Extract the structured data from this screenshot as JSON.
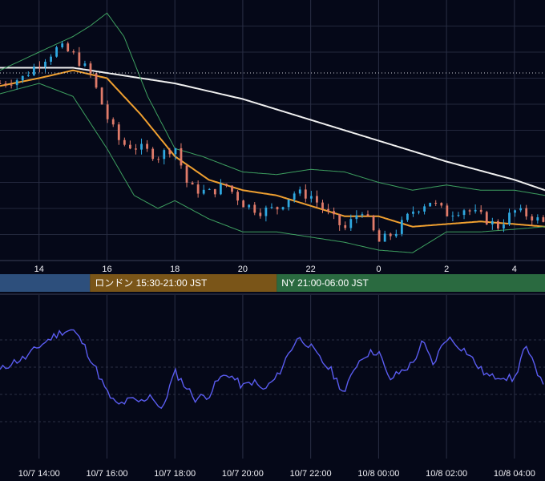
{
  "colors": {
    "background": "#050818",
    "grid": "#2a2f45",
    "candle_up": "#2fa8e0",
    "candle_down": "#e07b6a",
    "ma_short": "#f0a030",
    "ma_long": "#f0f0f0",
    "bollinger": "#3ea060",
    "indicator": "#5a5cf0",
    "session_tokyo": "#2d4f7c",
    "session_london": "#7a5518",
    "session_ny": "#2a6a40"
  },
  "sessions": [
    {
      "label": "",
      "color_key": "session_tokyo",
      "from_hour": 0.0,
      "to_hour": 15.5
    },
    {
      "label": "ロンドン 15:30-21:00 JST",
      "color_key": "session_london",
      "from_hour": 15.5,
      "to_hour": 21.0
    },
    {
      "label": "NY 21:00-06:00 JST",
      "color_key": "session_ny",
      "from_hour": 21.0,
      "to_hour": 30.0
    }
  ],
  "chart_data": [
    {
      "type": "candlestick",
      "title": "",
      "x_range_hours": [
        12.85,
        28.9
      ],
      "y_range": [
        0,
        100
      ],
      "grid": true,
      "tick_labels": [
        "14",
        "16",
        "18",
        "20",
        "22",
        "0",
        "2",
        "4"
      ],
      "tick_hours": [
        14,
        16,
        18,
        20,
        22,
        24,
        26,
        28
      ],
      "reference_line": 72,
      "series": [
        {
          "name": "",
          "kind": "ma_long",
          "points": [
            [
              12.85,
              74
            ],
            [
              15,
              74
            ],
            [
              16,
              72
            ],
            [
              18,
              68
            ],
            [
              20,
              62
            ],
            [
              22,
              54
            ],
            [
              24,
              46
            ],
            [
              26,
              38
            ],
            [
              28,
              31
            ],
            [
              28.9,
              27
            ]
          ]
        },
        {
          "name": "",
          "kind": "ma_short",
          "points": [
            [
              12.85,
              67
            ],
            [
              14,
              70
            ],
            [
              15,
              73
            ],
            [
              16,
              70
            ],
            [
              17,
              56
            ],
            [
              18,
              40
            ],
            [
              19,
              31
            ],
            [
              20,
              27
            ],
            [
              21,
              25
            ],
            [
              22,
              21
            ],
            [
              23,
              17
            ],
            [
              24,
              17
            ],
            [
              25,
              13
            ],
            [
              26,
              14
            ],
            [
              27,
              15
            ],
            [
              28,
              14
            ],
            [
              28.9,
              13
            ]
          ]
        },
        {
          "name": "",
          "kind": "bollinger_upper",
          "points": [
            [
              12.85,
              73
            ],
            [
              14,
              80
            ],
            [
              15,
              86
            ],
            [
              15.5,
              90
            ],
            [
              16,
              95
            ],
            [
              16.5,
              86
            ],
            [
              17.2,
              63
            ],
            [
              18,
              43
            ],
            [
              18.8,
              40
            ],
            [
              20,
              34
            ],
            [
              21,
              33
            ],
            [
              22,
              35
            ],
            [
              23,
              34
            ],
            [
              24,
              30
            ],
            [
              25,
              27
            ],
            [
              26,
              29
            ],
            [
              27,
              27
            ],
            [
              28,
              27
            ],
            [
              28.9,
              25
            ]
          ]
        },
        {
          "name": "",
          "kind": "bollinger_lower",
          "points": [
            [
              12.85,
              64
            ],
            [
              14,
              68
            ],
            [
              15,
              63
            ],
            [
              16,
              43
            ],
            [
              16.8,
              25
            ],
            [
              17.5,
              20
            ],
            [
              18,
              23
            ],
            [
              19,
              16
            ],
            [
              20,
              11
            ],
            [
              21,
              11
            ],
            [
              22,
              9
            ],
            [
              23,
              7
            ],
            [
              24,
              4
            ],
            [
              25,
              3
            ],
            [
              26,
              11
            ],
            [
              27,
              11
            ],
            [
              28,
              12
            ],
            [
              28.9,
              13
            ]
          ]
        },
        {
          "name": "",
          "kind": "price_close",
          "points": [
            [
              12.85,
              68
            ],
            [
              13.5,
              70
            ],
            [
              14,
              76
            ],
            [
              14.6,
              82
            ],
            [
              15,
              79
            ],
            [
              15.5,
              72
            ],
            [
              16,
              55
            ],
            [
              16.4,
              45
            ],
            [
              17,
              43
            ],
            [
              17.5,
              40
            ],
            [
              18,
              44
            ],
            [
              18.4,
              28
            ],
            [
              19,
              26
            ],
            [
              19.5,
              29
            ],
            [
              20,
              22
            ],
            [
              20.5,
              19
            ],
            [
              21,
              20
            ],
            [
              21.5,
              26
            ],
            [
              22,
              25
            ],
            [
              22.5,
              18
            ],
            [
              23,
              12
            ],
            [
              23.5,
              20
            ],
            [
              24,
              7
            ],
            [
              24.5,
              11
            ],
            [
              25,
              19
            ],
            [
              25.5,
              23
            ],
            [
              26,
              18
            ],
            [
              26.5,
              20
            ],
            [
              27,
              17
            ],
            [
              27.5,
              13
            ],
            [
              28,
              19
            ],
            [
              28.5,
              17
            ],
            [
              28.9,
              14
            ]
          ]
        }
      ]
    },
    {
      "type": "line",
      "title": "",
      "x_range_hours": [
        12.85,
        28.9
      ],
      "y_range": [
        0,
        100
      ],
      "grid": true,
      "tick_labels": [
        "10/7 14:00",
        "10/7 16:00",
        "10/7 18:00",
        "10/7 20:00",
        "10/7 22:00",
        "10/8 00:00",
        "10/8 02:00",
        "10/8 04:00"
      ],
      "tick_hours": [
        14,
        16,
        18,
        20,
        22,
        24,
        26,
        28
      ],
      "series": [
        {
          "name": "",
          "kind": "indicator",
          "points": [
            [
              12.85,
              57
            ],
            [
              13.2,
              64
            ],
            [
              13.6,
              68
            ],
            [
              14,
              78
            ],
            [
              14.4,
              86
            ],
            [
              14.7,
              91
            ],
            [
              15,
              92
            ],
            [
              15.3,
              80
            ],
            [
              15.7,
              57
            ],
            [
              16,
              38
            ],
            [
              16.3,
              27
            ],
            [
              16.7,
              32
            ],
            [
              17,
              30
            ],
            [
              17.3,
              37
            ],
            [
              17.6,
              22
            ],
            [
              18,
              56
            ],
            [
              18.3,
              44
            ],
            [
              18.6,
              33
            ],
            [
              19,
              36
            ],
            [
              19.3,
              50
            ],
            [
              19.6,
              54
            ],
            [
              20,
              43
            ],
            [
              20.3,
              48
            ],
            [
              20.6,
              40
            ],
            [
              21,
              51
            ],
            [
              21.3,
              69
            ],
            [
              21.6,
              85
            ],
            [
              21.9,
              81
            ],
            [
              22.3,
              66
            ],
            [
              22.6,
              57
            ],
            [
              23,
              37
            ],
            [
              23.3,
              61
            ],
            [
              23.6,
              71
            ],
            [
              24,
              74
            ],
            [
              24.3,
              49
            ],
            [
              24.6,
              55
            ],
            [
              25,
              63
            ],
            [
              25.3,
              82
            ],
            [
              25.6,
              62
            ],
            [
              26,
              86
            ],
            [
              26.3,
              80
            ],
            [
              26.6,
              73
            ],
            [
              27,
              58
            ],
            [
              27.3,
              51
            ],
            [
              27.6,
              53
            ],
            [
              28,
              49
            ],
            [
              28.3,
              78
            ],
            [
              28.6,
              60
            ],
            [
              28.9,
              46
            ]
          ]
        }
      ]
    }
  ]
}
